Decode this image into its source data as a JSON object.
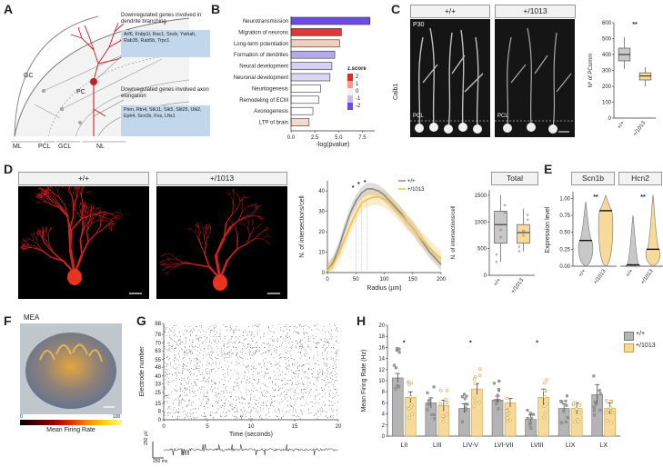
{
  "panels": {
    "A": {
      "letter": "A",
      "box_top_title": "Downregulated genes involved in dendrite branching",
      "box_top_genes": "Arf6, Fnbp1l, Rac1, Sncb, Ywhah, Rab35, Rab5b, Trpc1",
      "box_bottom_title": "Downregulated genes involved axon elongation",
      "box_bottom_genes": "Pten, Rtn4, Stk11, Sik5, Slit25, Ulk2, Eph4, Scn1b, Fos, Lfts1",
      "label_gc": "GC",
      "label_pc": "PC",
      "layers": [
        "ML",
        "PCL",
        "GCL",
        "NL"
      ]
    },
    "B": {
      "letter": "B",
      "legend_title": "z.score",
      "legend_ticks": [
        "2",
        "1",
        "0",
        "-1",
        "-2"
      ]
    },
    "C": {
      "letter": "C",
      "header_wt": "+/+",
      "header_mut": "+/1013",
      "age": "P30",
      "stain": "Calb1",
      "pcl_wt": "PCL",
      "pcl_mut": "PCL",
      "significance": "**"
    },
    "D": {
      "letter": "D",
      "header_wt": "+/+",
      "header_mut": "+/1013",
      "sig_stars": [
        "*",
        "*",
        "*"
      ],
      "total_header": "Total"
    },
    "E": {
      "letter": "E",
      "gene1": "Scn1b",
      "gene2": "Hcn2",
      "sig1": "**",
      "sig2": "**"
    },
    "F": {
      "letter": "F",
      "title": "MEA",
      "colorbar_label": "Mean Firing Rate",
      "colorbar_min": "0",
      "colorbar_max": "100"
    },
    "G": {
      "letter": "G",
      "scale_uv": "250 µV",
      "scale_ms": "250 ms"
    },
    "H": {
      "letter": "H",
      "legend_wt": "+/+",
      "legend_mut": "+/1013"
    }
  },
  "chart_data": [
    {
      "id": "B",
      "type": "bar",
      "orientation": "horizontal",
      "categories": [
        "Neurotransmission",
        "Migration of neurons",
        "Long-term potentiation",
        "Formation of dendrites",
        "Neural development",
        "Neuronal development",
        "Neuritogenesis",
        "Remodeling of ECM",
        "Axonogenesis",
        "LTP of brain"
      ],
      "values": [
        8.3,
        5.3,
        5.1,
        4.6,
        4.3,
        4.1,
        3.1,
        2.9,
        2.3,
        1.9
      ],
      "colors": [
        "#6a4ce0",
        "#e03838",
        "#f3cdbd",
        "#b6a8ec",
        "#d8d0f4",
        "#dcd6f6",
        "#ffffff",
        "#ffffff",
        "#ffffff",
        "#f5d8cc"
      ],
      "xlabel": "-log(pvalue)",
      "xticks": [
        "0.0",
        "2.5",
        "5.0",
        "7.5"
      ],
      "xlim": [
        0,
        8.8
      ]
    },
    {
      "id": "C",
      "type": "box",
      "categories": [
        "+/+",
        "+/1013"
      ],
      "ylabel": "Nº of PCs/mm",
      "yticks": [
        "0",
        "100",
        "200",
        "300",
        "400",
        "500",
        "600"
      ],
      "ylim": [
        0,
        600
      ],
      "boxes": [
        {
          "min": 310,
          "q1": 360,
          "median": 400,
          "q3": 440,
          "max": 510,
          "color": "#c8c8c8"
        },
        {
          "min": 200,
          "q1": 240,
          "median": 265,
          "q3": 285,
          "max": 320,
          "color": "#f7d999"
        }
      ]
    },
    {
      "id": "D-sholl",
      "type": "line",
      "xlabel": "Radius (µm)",
      "ylabel": "N. of intersections/cell",
      "xticks": [
        "0",
        "50",
        "100",
        "150",
        "200"
      ],
      "yticks": [
        "0",
        "10",
        "20",
        "30",
        "40"
      ],
      "xlim": [
        0,
        200
      ],
      "ylim": [
        0,
        45
      ],
      "x": [
        0,
        10,
        20,
        30,
        40,
        50,
        60,
        70,
        80,
        90,
        100,
        110,
        120,
        130,
        140,
        150,
        160,
        170,
        180,
        190,
        200
      ],
      "series": [
        {
          "name": "+/+",
          "color": "#8a8a8a",
          "values": [
            1,
            5,
            12,
            21,
            29,
            35,
            39,
            41,
            41,
            40,
            38,
            35,
            32,
            29,
            25,
            22,
            18,
            14,
            10,
            7,
            4
          ]
        },
        {
          "name": "+/1013",
          "color": "#f2c046",
          "values": [
            1,
            4,
            9,
            16,
            23,
            29,
            34,
            36,
            37,
            37,
            36,
            34,
            31,
            28,
            25,
            22,
            18,
            15,
            12,
            9,
            7
          ]
        }
      ]
    },
    {
      "id": "D-total",
      "type": "box",
      "categories": [
        "+/+",
        "+/1013"
      ],
      "ylabel": "N. of intersections/cell",
      "yticks": [
        "0",
        "500",
        "1000",
        "1500"
      ],
      "ylim": [
        0,
        1600
      ],
      "boxes": [
        {
          "min": 250,
          "q1": 600,
          "median": 950,
          "q3": 1200,
          "max": 1500,
          "color": "#c8c8c8"
        },
        {
          "min": 450,
          "q1": 600,
          "median": 800,
          "q3": 950,
          "max": 1250,
          "color": "#f7d999"
        }
      ]
    },
    {
      "id": "E",
      "type": "violin",
      "ylabel": "Expression level",
      "yticks": [
        "0.00",
        "0.25",
        "0.50",
        "0.75",
        "1.00"
      ],
      "ylim": [
        0,
        1.1
      ],
      "genes": [
        {
          "name": "Scn1b",
          "categories": [
            "+/+",
            "+/1013"
          ],
          "medians": [
            0.38,
            0.82
          ]
        },
        {
          "name": "Hcn2",
          "categories": [
            "+/+",
            "+/1013"
          ],
          "medians": [
            0.02,
            0.25
          ]
        }
      ]
    },
    {
      "id": "G",
      "type": "scatter",
      "subtype": "raster",
      "xlabel": "Time (seconds)",
      "ylabel": "Electrode number",
      "xticks": [
        "0",
        "5",
        "10",
        "15",
        "20"
      ],
      "yticks": [
        "0",
        "8",
        "15",
        "25",
        "33",
        "40",
        "48",
        "55",
        "63",
        "70",
        "78",
        "88"
      ],
      "xlim": [
        0,
        20
      ],
      "ylim": [
        0,
        88
      ]
    },
    {
      "id": "H",
      "type": "bar",
      "categories": [
        "LII",
        "LIII",
        "LIV-V",
        "LVI-VII",
        "LVIII",
        "LIX",
        "LX"
      ],
      "ylabel": "Mean Firing Rate (Hz)",
      "yticks": [
        "0",
        "2",
        "4",
        "6",
        "8",
        "10",
        "12",
        "14",
        "16",
        "18",
        "20"
      ],
      "ylim": [
        0,
        20
      ],
      "series": [
        {
          "name": "+/+",
          "color": "#b4b4b4",
          "values": [
            10.5,
            6,
            5,
            6.5,
            3,
            5,
            7.5
          ],
          "errors": [
            0.8,
            0.9,
            0.8,
            0.7,
            0.8,
            0.8,
            1.8
          ]
        },
        {
          "name": "+/1013",
          "color": "#f7d999",
          "values": [
            7,
            5.5,
            8.5,
            6,
            7,
            5,
            5
          ],
          "errors": [
            1.0,
            1.0,
            1.0,
            0.8,
            1.5,
            1.0,
            1.0
          ]
        }
      ],
      "significance": [
        {
          "category": "LII",
          "label": "*"
        },
        {
          "category": "LIV-V",
          "label": "*"
        },
        {
          "category": "LVIII",
          "label": "*"
        }
      ]
    }
  ]
}
